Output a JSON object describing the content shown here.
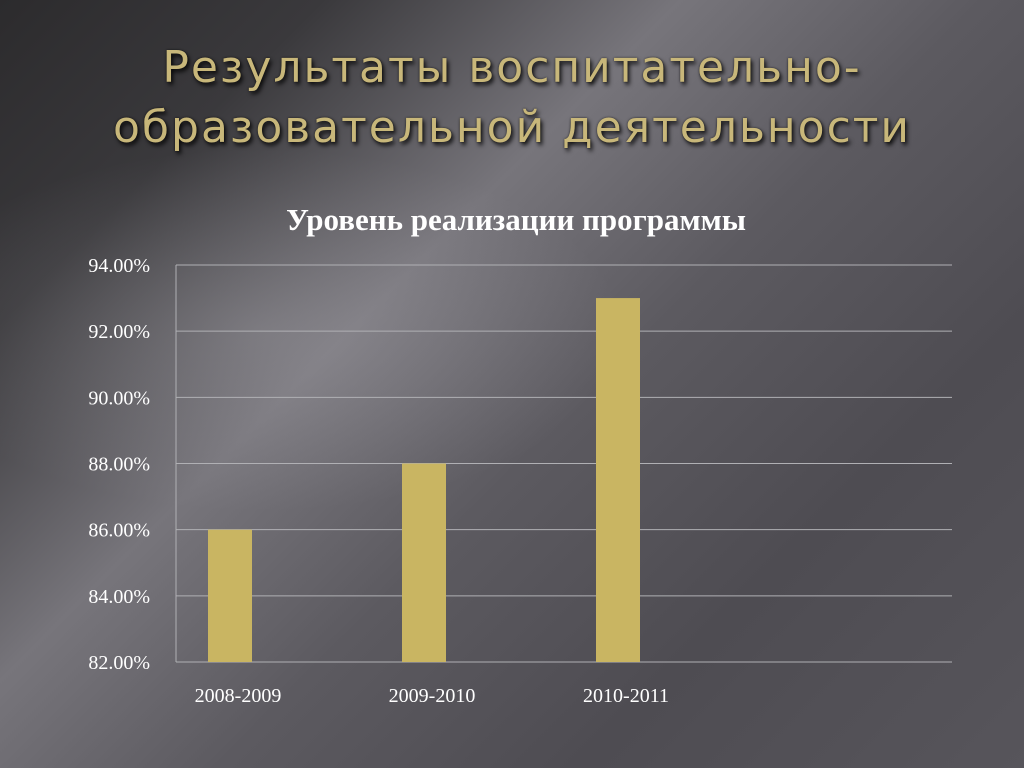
{
  "slide": {
    "title_line1": "Результаты воспитательно-",
    "title_line2": "образовательной деятельности"
  },
  "chart_data": {
    "type": "bar",
    "title": "Уровень реализации программы",
    "categories": [
      "2008-2009",
      "2009-2010",
      "2010-2011"
    ],
    "values": [
      86.0,
      88.0,
      93.0
    ],
    "ylim": [
      82.0,
      94.0
    ],
    "yticks": [
      "82.00%",
      "84.00%",
      "86.00%",
      "88.00%",
      "90.00%",
      "92.00%",
      "94.00%"
    ],
    "grid": true,
    "legend": "none",
    "bar_color": "#c9b562",
    "text_color": "#ffffff",
    "grid_color": "#b0b0b4"
  }
}
